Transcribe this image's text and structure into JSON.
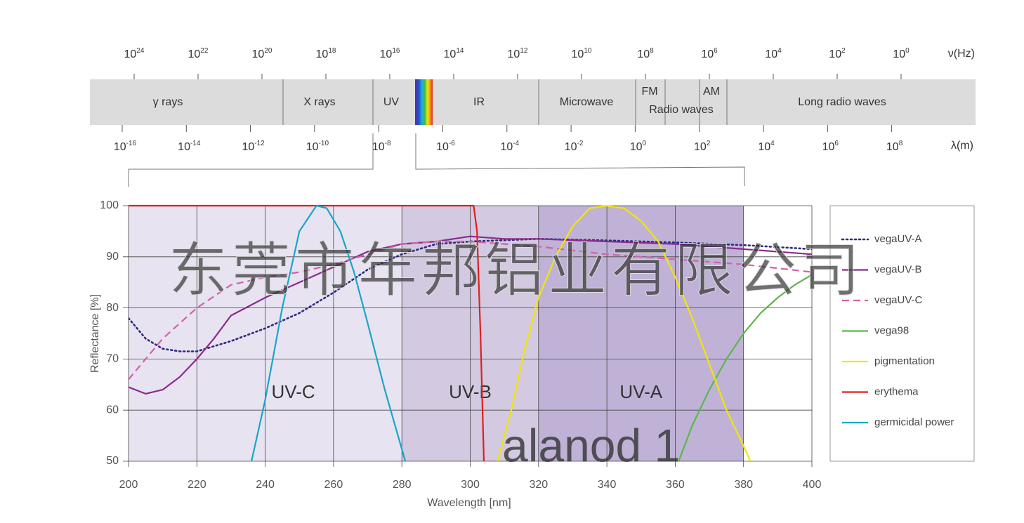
{
  "spectrum": {
    "frequency_unit": "ν(Hz)",
    "wavelength_unit": "λ(m)",
    "frequency_ticks": [
      {
        "base": "10",
        "exp": "24"
      },
      {
        "base": "10",
        "exp": "22"
      },
      {
        "base": "10",
        "exp": "20"
      },
      {
        "base": "10",
        "exp": "18"
      },
      {
        "base": "10",
        "exp": "16"
      },
      {
        "base": "10",
        "exp": "14"
      },
      {
        "base": "10",
        "exp": "12"
      },
      {
        "base": "10",
        "exp": "10"
      },
      {
        "base": "10",
        "exp": "8"
      },
      {
        "base": "10",
        "exp": "6"
      },
      {
        "base": "10",
        "exp": "4"
      },
      {
        "base": "10",
        "exp": "2"
      },
      {
        "base": "10",
        "exp": "0"
      }
    ],
    "wavelength_ticks": [
      {
        "base": "10",
        "exp": "-16"
      },
      {
        "base": "10",
        "exp": "-14"
      },
      {
        "base": "10",
        "exp": "-12"
      },
      {
        "base": "10",
        "exp": "-10"
      },
      {
        "base": "10",
        "exp": "-8"
      },
      {
        "base": "10",
        "exp": "-6"
      },
      {
        "base": "10",
        "exp": "-4"
      },
      {
        "base": "10",
        "exp": "-2"
      },
      {
        "base": "10",
        "exp": "0"
      },
      {
        "base": "10",
        "exp": "2"
      },
      {
        "base": "10",
        "exp": "4"
      },
      {
        "base": "10",
        "exp": "6"
      },
      {
        "base": "10",
        "exp": "8"
      }
    ],
    "bands": [
      "γ rays",
      "X rays",
      "UV",
      "IR",
      "Microwave",
      "FM",
      "AM",
      "Radio waves",
      "Long radio waves"
    ]
  },
  "watermark": [
    "东莞市年邦铝业有限公司",
    "alanod 1"
  ],
  "chart_data": {
    "type": "line",
    "x_label": "Wavelength [nm]",
    "y_label": "Reflectance [%]",
    "xlim": [
      200,
      400
    ],
    "ylim": [
      50,
      100
    ],
    "xticks": [
      200,
      220,
      240,
      260,
      280,
      300,
      320,
      340,
      360,
      380,
      400
    ],
    "yticks": [
      50,
      60,
      70,
      80,
      90,
      100
    ],
    "grid": true,
    "regions": [
      {
        "label": "UV-C",
        "from": 200,
        "to": 280,
        "color": "#e8e3f1"
      },
      {
        "label": "UV-B",
        "from": 280,
        "to": 320,
        "color": "#d3c9e1"
      },
      {
        "label": "UV-A",
        "from": 320,
        "to": 380,
        "color": "#bfb2d6"
      }
    ],
    "legend": "right",
    "series": [
      {
        "name": "vegaUV-A",
        "color": "#2f2a7e",
        "style": "dotted",
        "x": [
          200,
          205,
          210,
          215,
          220,
          230,
          240,
          250,
          260,
          270,
          280,
          290,
          300,
          320,
          340,
          360,
          380,
          400
        ],
        "values": [
          78,
          74,
          72,
          71.5,
          71.5,
          73.5,
          76,
          79,
          83,
          87.5,
          90.5,
          92.5,
          93,
          93.5,
          93.2,
          92.8,
          92.3,
          91.5
        ]
      },
      {
        "name": "vegaUV-B",
        "color": "#8b2a8f",
        "style": "solid",
        "x": [
          200,
          205,
          210,
          215,
          220,
          225,
          230,
          240,
          250,
          260,
          270,
          280,
          290,
          300,
          310,
          320,
          340,
          360,
          380,
          400
        ],
        "values": [
          64.5,
          63.2,
          64,
          66.5,
          70,
          74,
          78.5,
          82,
          85,
          88,
          91,
          92.5,
          93,
          94,
          93.5,
          93.5,
          93,
          92.5,
          91.5,
          90.5
        ]
      },
      {
        "name": "vegaUV-C",
        "color": "#d062aa",
        "style": "dashed",
        "x": [
          200,
          210,
          220,
          230,
          240,
          250,
          260,
          270,
          280,
          290,
          300,
          320,
          340,
          360,
          380,
          400
        ],
        "values": [
          66,
          74,
          80,
          84.5,
          86,
          87,
          88.5,
          90.5,
          92.5,
          93,
          93,
          92,
          90.5,
          89.5,
          88.5,
          87
        ]
      },
      {
        "name": "vega98",
        "color": "#5bb847",
        "style": "solid",
        "x": [
          361,
          365,
          370,
          375,
          380,
          385,
          390,
          395,
          400
        ],
        "values": [
          50,
          57,
          64,
          70,
          75,
          79,
          82,
          84.5,
          86.5
        ]
      },
      {
        "name": "pigmentation",
        "color": "#f2e600",
        "style": "solid",
        "x": [
          308,
          312,
          316,
          320,
          325,
          330,
          335,
          340,
          345,
          350,
          355,
          360,
          365,
          370,
          375,
          380,
          382
        ],
        "values": [
          50,
          60,
          72,
          82,
          90,
          96,
          99.5,
          100,
          99.5,
          97,
          93,
          86,
          78,
          69,
          60,
          53,
          50
        ]
      },
      {
        "name": "erythema",
        "color": "#e0201f",
        "style": "solid",
        "x": [
          200,
          301,
          302,
          303,
          304
        ],
        "values": [
          100,
          100,
          95,
          75,
          50
        ]
      },
      {
        "name": "germicidal power",
        "color": "#1aa5c8",
        "style": "solid",
        "x": [
          236,
          240,
          245,
          250,
          255,
          258,
          262,
          266,
          270,
          275,
          281
        ],
        "values": [
          50,
          62,
          80,
          95,
          100,
          99.5,
          95,
          87,
          77,
          64,
          50
        ]
      }
    ]
  }
}
